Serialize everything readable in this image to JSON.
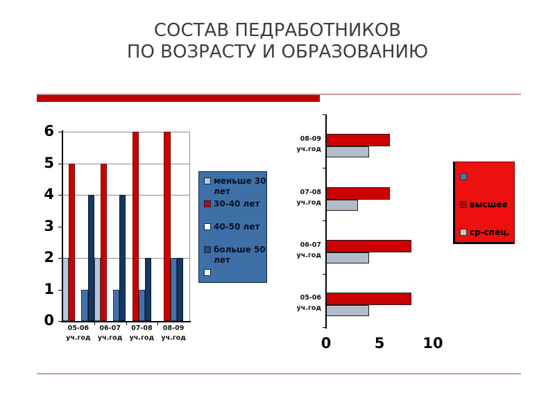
{
  "title": {
    "line1": "СОСТАВ ПЕДРАБОТНИКОВ",
    "line2": "ПО ВОЗРАСТУ И ОБРАЗОВАНИЮ"
  },
  "decorations": {
    "accent_color": "#c00000",
    "line_color": "#cc9999"
  },
  "chart_data": [
    {
      "id": "age-chart",
      "type": "bar",
      "orientation": "vertical",
      "categories": [
        "05-06 уч.год",
        "06-07 уч.год",
        "07-08 уч.год",
        "08-09 уч.год"
      ],
      "series": [
        {
          "name": "меньше 30 лет",
          "color": "#b9c6d6",
          "border": "#3a4a66",
          "values": [
            2,
            2,
            0,
            0
          ]
        },
        {
          "name": "30-40 лет",
          "color": "#cc0000",
          "border": "#6e0000",
          "values": [
            5,
            5,
            6,
            6
          ]
        },
        {
          "name": "40-50 лет",
          "color": "#ffffff",
          "border": "#ffffff",
          "values": [
            0,
            0,
            0,
            0
          ]
        },
        {
          "name": "",
          "color": "#4472a8",
          "border": "#17375e",
          "values": [
            1,
            1,
            1,
            2
          ]
        },
        {
          "name": "больше 50 лет",
          "color": "#17375e",
          "border": "#0a1a33",
          "values": [
            4,
            4,
            2,
            2
          ]
        }
      ],
      "ylim": [
        0,
        6
      ],
      "yticks": [
        0,
        1,
        2,
        3,
        4,
        5,
        6
      ],
      "gridlines_at": [
        2,
        4,
        5,
        6
      ],
      "legend": {
        "bg": "#3e6fa6",
        "border": "#0e2a47",
        "text_color": "#0a1226",
        "items": [
          {
            "label": "меньше 30 лет",
            "swatch": "#b9c6d6"
          },
          {
            "label": "30-40 лет",
            "swatch": "#cc0000"
          },
          {
            "label": "40-50 лет",
            "swatch": "#ffffff"
          },
          {
            "label": "больше 50 лет",
            "swatch": "#1f4e79"
          },
          {
            "label": "",
            "swatch": "#ffffff"
          }
        ]
      }
    },
    {
      "id": "education-chart",
      "type": "bar",
      "orientation": "horizontal",
      "categories": [
        "08-09 уч.год",
        "07-08 уч.год",
        "06-07 уч.год",
        "05-06 уч.год"
      ],
      "series": [
        {
          "name": "высшее",
          "color": "#cc0000",
          "border": "#1a1a1a",
          "values": [
            6,
            6,
            8,
            8
          ]
        },
        {
          "name": "ср-спец.",
          "color": "#b3bdc9",
          "border": "#1a1a1a",
          "values": [
            4,
            3,
            4,
            4
          ]
        }
      ],
      "xlim": [
        0,
        10
      ],
      "xticks": [
        0,
        5,
        10
      ],
      "legend": {
        "bg": "#ee0f0f",
        "border": "#7a0000",
        "text_color": "#000000",
        "items": [
          {
            "label": "",
            "swatch": "#4575b4"
          },
          {
            "label": "высшее",
            "swatch": "#cc0000"
          },
          {
            "label": "ср-спец.",
            "swatch": "#c6ccd4"
          }
        ]
      }
    }
  ]
}
